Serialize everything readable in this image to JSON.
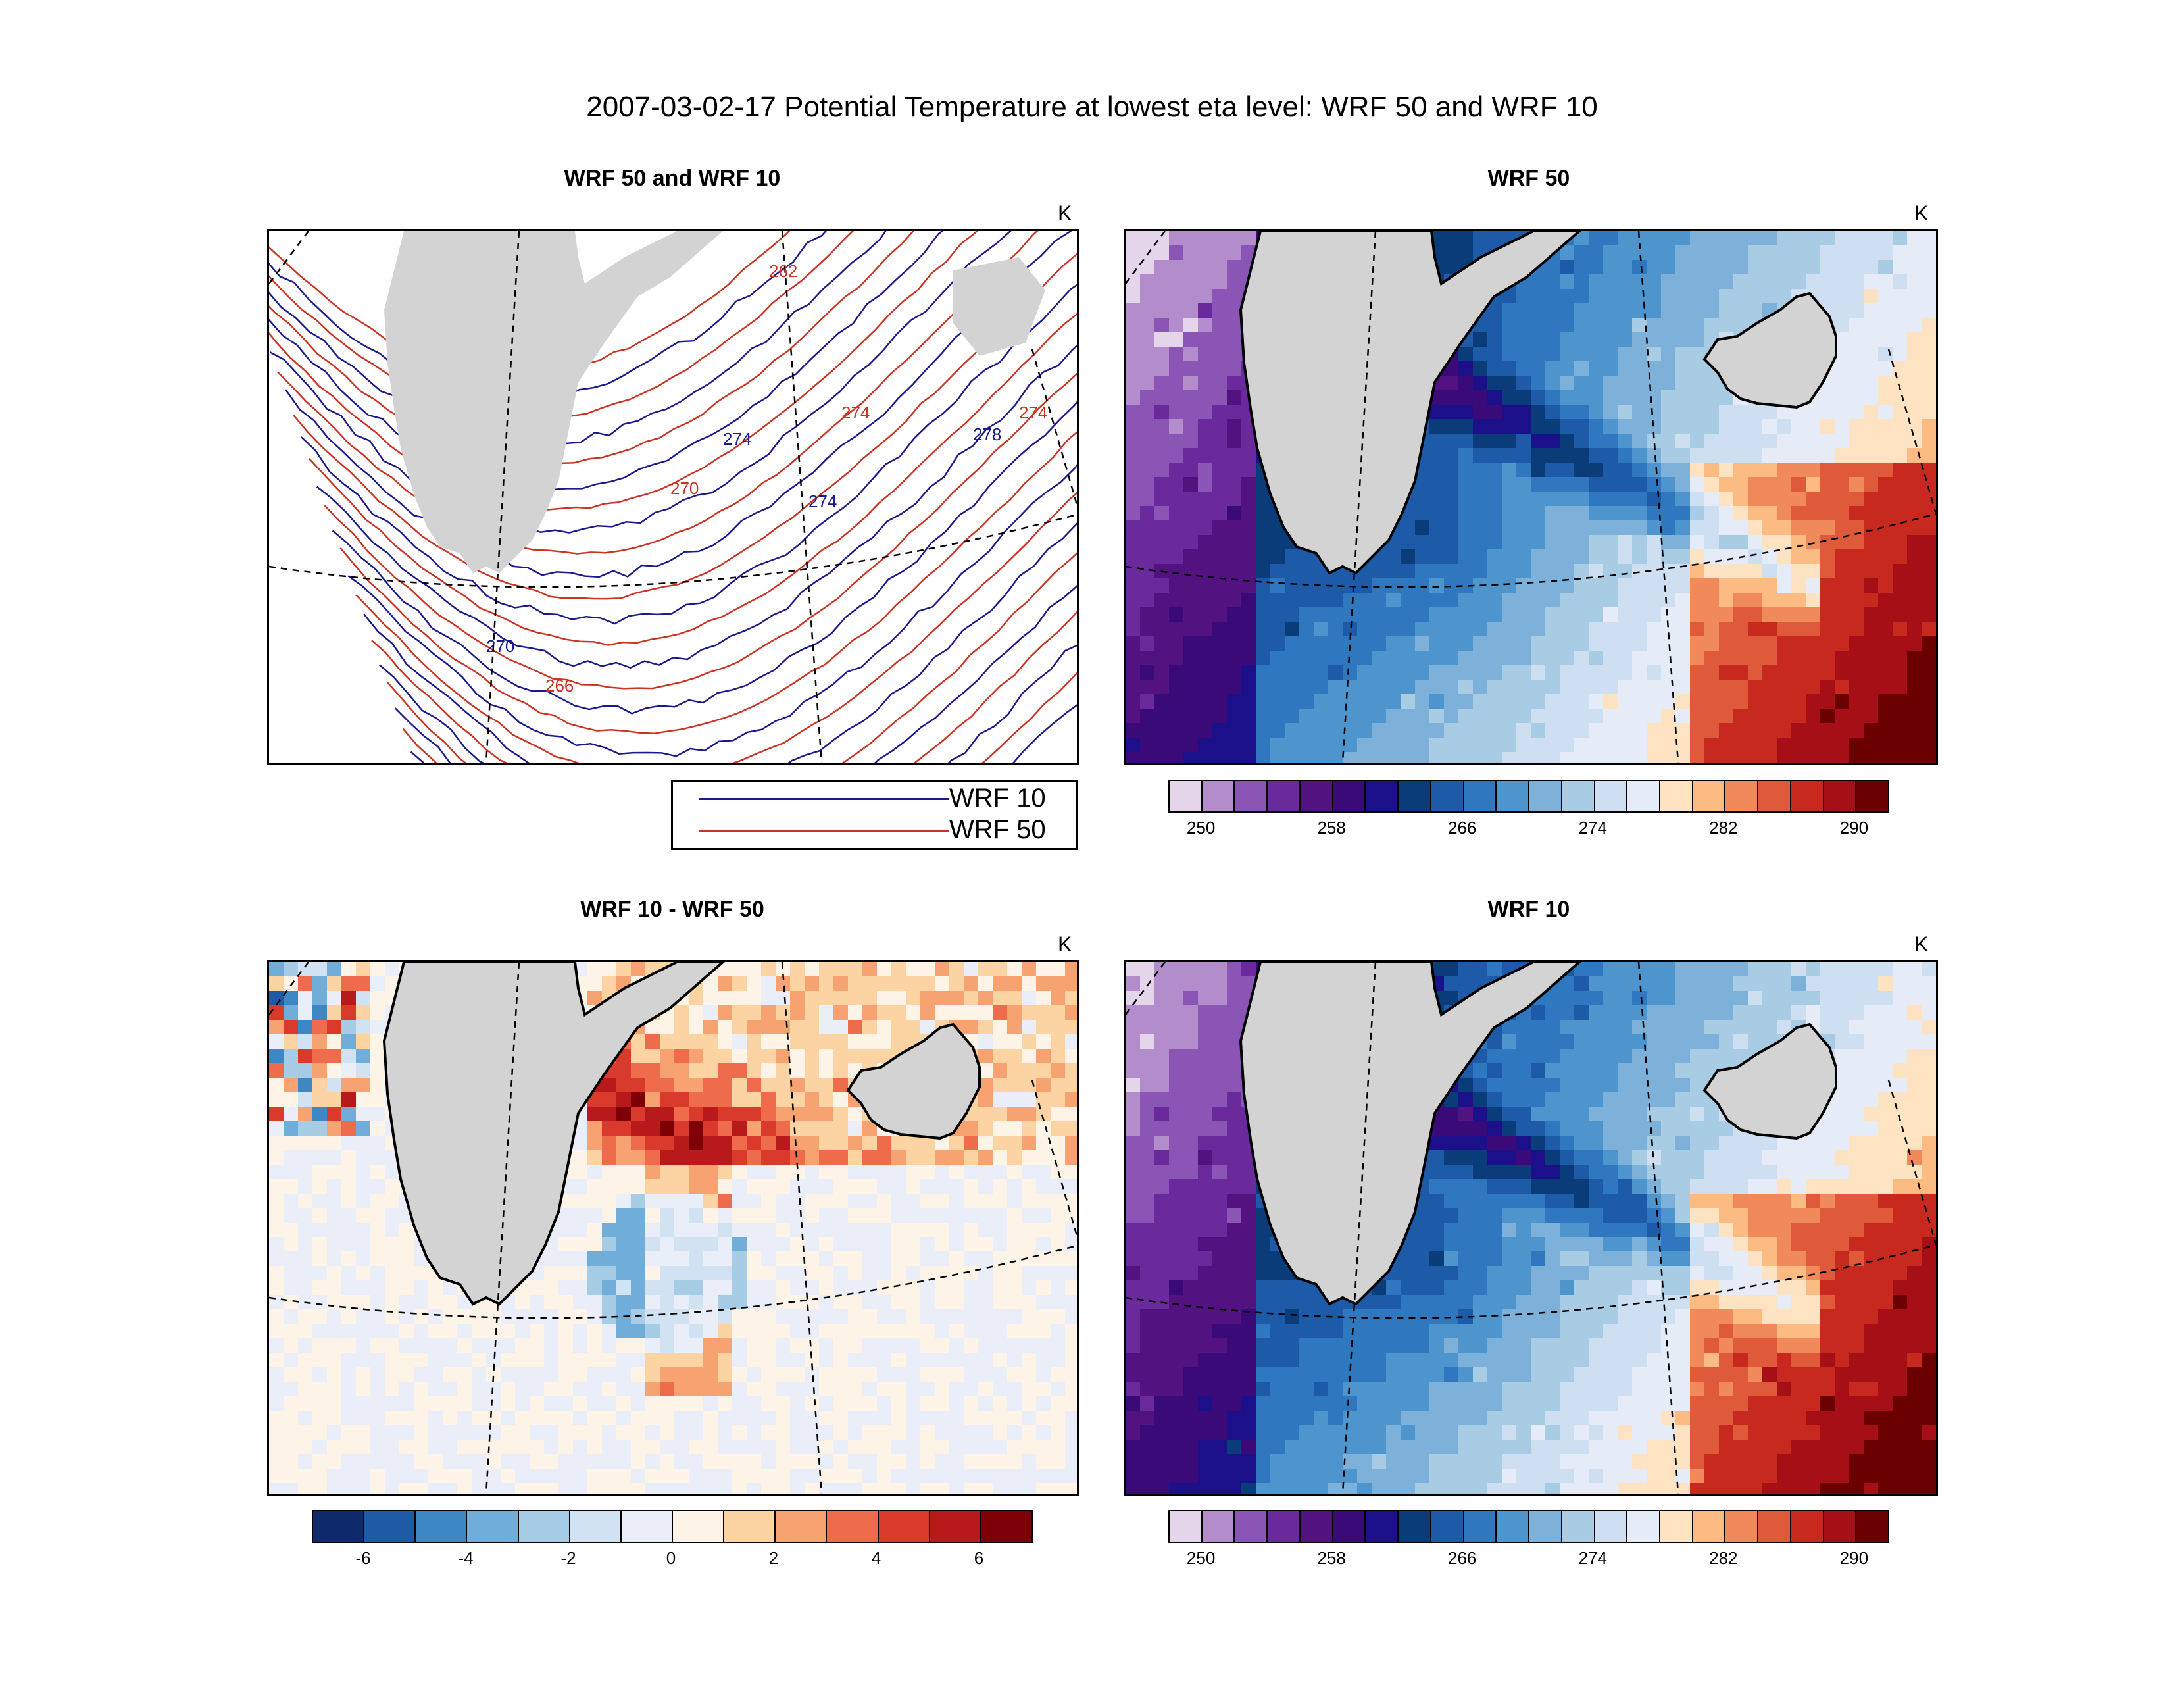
{
  "title": "2007-03-02-17 Potential Temperature at lowest eta level: WRF 50 and WRF 10",
  "panels": {
    "contour": {
      "title": "WRF 50 and WRF 10",
      "unit": "K"
    },
    "wrf50": {
      "title": "WRF 50",
      "unit": "K"
    },
    "diff": {
      "title": "WRF 10 - WRF 50",
      "unit": "K"
    },
    "wrf10": {
      "title": "WRF 10",
      "unit": "K"
    }
  },
  "legend": {
    "items": [
      {
        "label": "WRF 10",
        "color": "#1a1a8c"
      },
      {
        "label": "WRF 50",
        "color": "#cc3322"
      }
    ]
  },
  "contour_labels": [
    "262",
    "274",
    "274",
    "278",
    "274",
    "274",
    "270",
    "270",
    "266"
  ],
  "colors": {
    "land": "#d3d3d3",
    "coast": "#000000",
    "temp_palette": [
      "#e4d5ea",
      "#b28ccb",
      "#8a55b5",
      "#6b2a9c",
      "#52127f",
      "#3a0b78",
      "#1b0f8a",
      "#0b3c7a",
      "#1d5aa8",
      "#2f78bf",
      "#4f95cd",
      "#7eb1da",
      "#a9cce5",
      "#cddff0",
      "#e6ecf7",
      "#fde3c2",
      "#fbbb83",
      "#f08a5b",
      "#df5a3a",
      "#c7291f",
      "#a50f15",
      "#6b0000"
    ],
    "diff_palette": [
      "#0f2a6b",
      "#1f5aa6",
      "#3c87c4",
      "#70add8",
      "#a6cce6",
      "#d1e3f2",
      "#e9eef8",
      "#fdf3e6",
      "#fcd4a4",
      "#f7a371",
      "#ee6c4b",
      "#da3a2b",
      "#b8191b",
      "#7e0006"
    ]
  },
  "chart_data": [
    {
      "type": "heatmap",
      "name": "WRF 50",
      "colorbar": {
        "ticks": [
          250,
          258,
          266,
          274,
          282,
          290
        ],
        "range": [
          248,
          292
        ],
        "n_bins": 22,
        "unit": "K"
      }
    },
    {
      "type": "heatmap",
      "name": "WRF 10 - WRF 50",
      "colorbar": {
        "ticks": [
          -6,
          -4,
          -2,
          0,
          2,
          4,
          6
        ],
        "range": [
          -7,
          7
        ],
        "n_bins": 14,
        "unit": "K"
      }
    },
    {
      "type": "heatmap",
      "name": "WRF 10",
      "colorbar": {
        "ticks": [
          250,
          258,
          266,
          274,
          282,
          290
        ],
        "range": [
          248,
          292
        ],
        "n_bins": 22,
        "unit": "K"
      }
    },
    {
      "type": "line",
      "name": "WRF 50 and WRF 10",
      "series": [
        {
          "name": "WRF 10"
        },
        {
          "name": "WRF 50"
        }
      ]
    }
  ]
}
